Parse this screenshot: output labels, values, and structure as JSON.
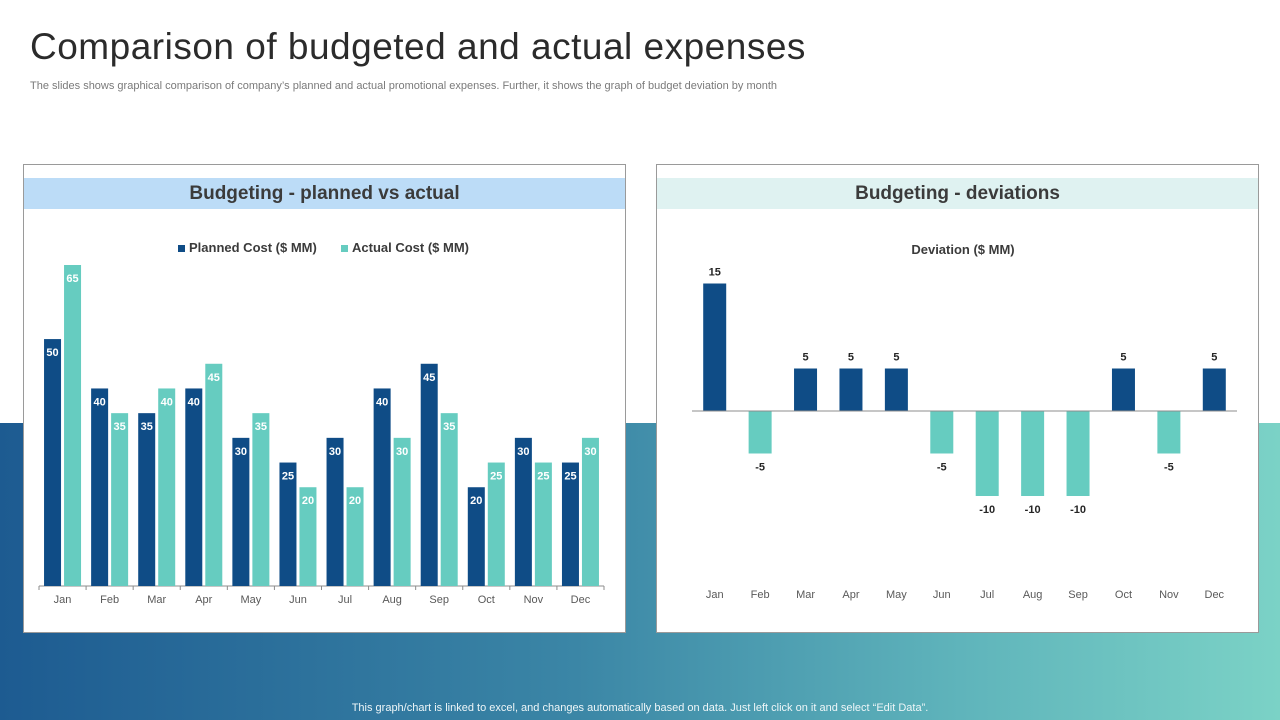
{
  "page": {
    "title": "Comparison of budgeted and actual expenses",
    "subtitle": "The slides shows graphical comparison of company’s planned and actual promotional expenses. Further, it shows the graph of budget deviation by month",
    "footer_note": "This graph/chart is linked to excel,  and changes automatically based on data. Just left click on it and select “Edit Data”."
  },
  "colors": {
    "planned": "#0f4c86",
    "actual": "#66ccc0",
    "text_dark": "#3b3b3b",
    "axis": "#8c8c8c"
  },
  "chart_data": [
    {
      "type": "bar",
      "panel_title": "Budgeting - planned vs actual",
      "categories": [
        "Jan",
        "Feb",
        "Mar",
        "Apr",
        "May",
        "Jun",
        "Jul",
        "Aug",
        "Sep",
        "Oct",
        "Nov",
        "Dec"
      ],
      "series": [
        {
          "name": "Planned Cost ($ MM)",
          "values": [
            50,
            40,
            35,
            40,
            30,
            25,
            30,
            40,
            45,
            20,
            30,
            25
          ]
        },
        {
          "name": "Actual Cost ($ MM)",
          "values": [
            65,
            35,
            40,
            45,
            35,
            20,
            20,
            30,
            35,
            25,
            25,
            30
          ]
        }
      ],
      "ylim": [
        0,
        65
      ],
      "legend": "top-center",
      "grid": false
    },
    {
      "type": "bar",
      "panel_title": "Budgeting - deviations",
      "title": "Deviation ($ MM)",
      "categories": [
        "Jan",
        "Feb",
        "Mar",
        "Apr",
        "May",
        "Jun",
        "Jul",
        "Aug",
        "Sep",
        "Oct",
        "Nov",
        "Dec"
      ],
      "values": [
        15,
        -5,
        5,
        5,
        5,
        -5,
        -10,
        -10,
        -10,
        5,
        -5,
        5
      ],
      "ylim": [
        -10,
        15
      ],
      "grid": false
    }
  ]
}
